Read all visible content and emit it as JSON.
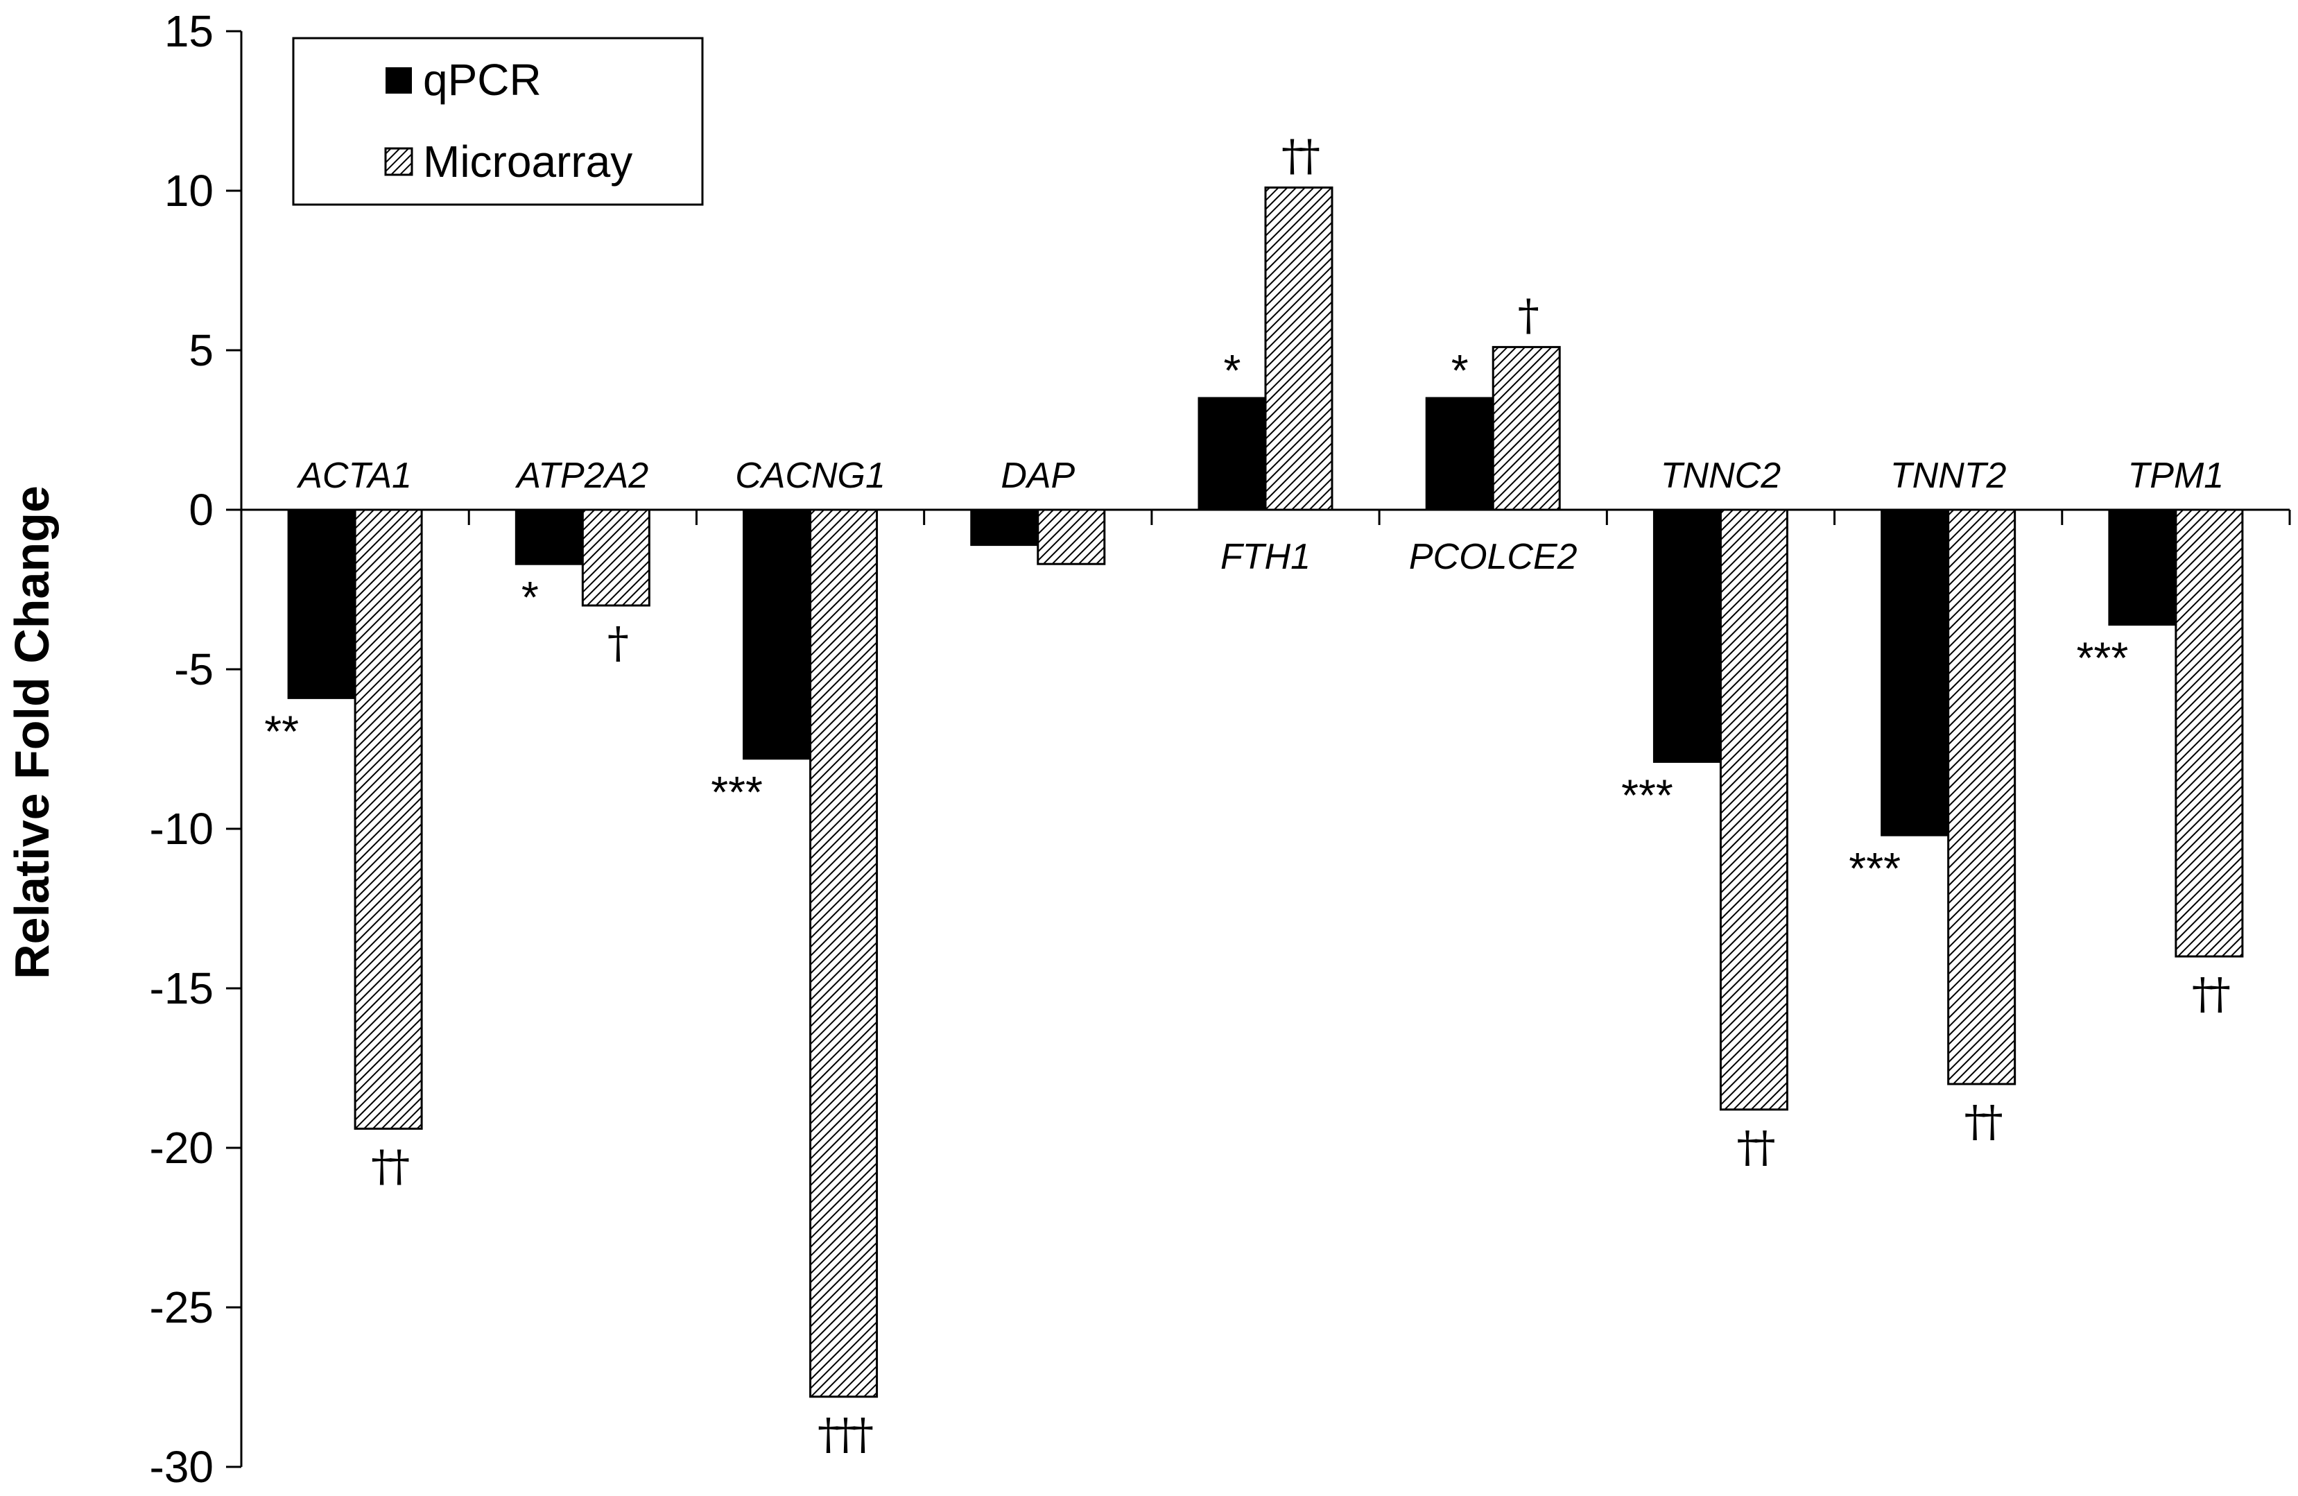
{
  "chart_data": {
    "type": "bar",
    "title": "",
    "xlabel": "",
    "ylabel": "Relative Fold Change",
    "ylim": [
      -30,
      15
    ],
    "yticks": [
      "15",
      "10",
      "5",
      "0",
      "-5",
      "-10",
      "-15",
      "-20",
      "-25",
      "-30"
    ],
    "grid": false,
    "legend_position": "top-left",
    "categories": [
      "ACTA1",
      "ATP2A2",
      "CACNG1",
      "DAP",
      "FTH1",
      "PCOLCE2",
      "TNNC2",
      "TNNT2",
      "TPM1"
    ],
    "series": [
      {
        "name": "qPCR",
        "fill": "solid",
        "color": "#000000",
        "values": [
          -5.9,
          -1.7,
          -7.8,
          -1.1,
          3.5,
          3.5,
          -7.9,
          -10.2,
          -3.6
        ],
        "annotations": [
          "**",
          "*",
          "***",
          "",
          "*",
          "*",
          "***",
          "***",
          "***"
        ]
      },
      {
        "name": "Microarray",
        "fill": "hatched",
        "color": "#000000",
        "values": [
          -19.4,
          -3.0,
          -27.8,
          -1.7,
          10.1,
          5.1,
          -18.8,
          -18.0,
          -14.0
        ],
        "annotations": [
          "††",
          "†",
          "†††",
          "",
          "††",
          "†",
          "††",
          "††",
          "††"
        ]
      }
    ]
  }
}
